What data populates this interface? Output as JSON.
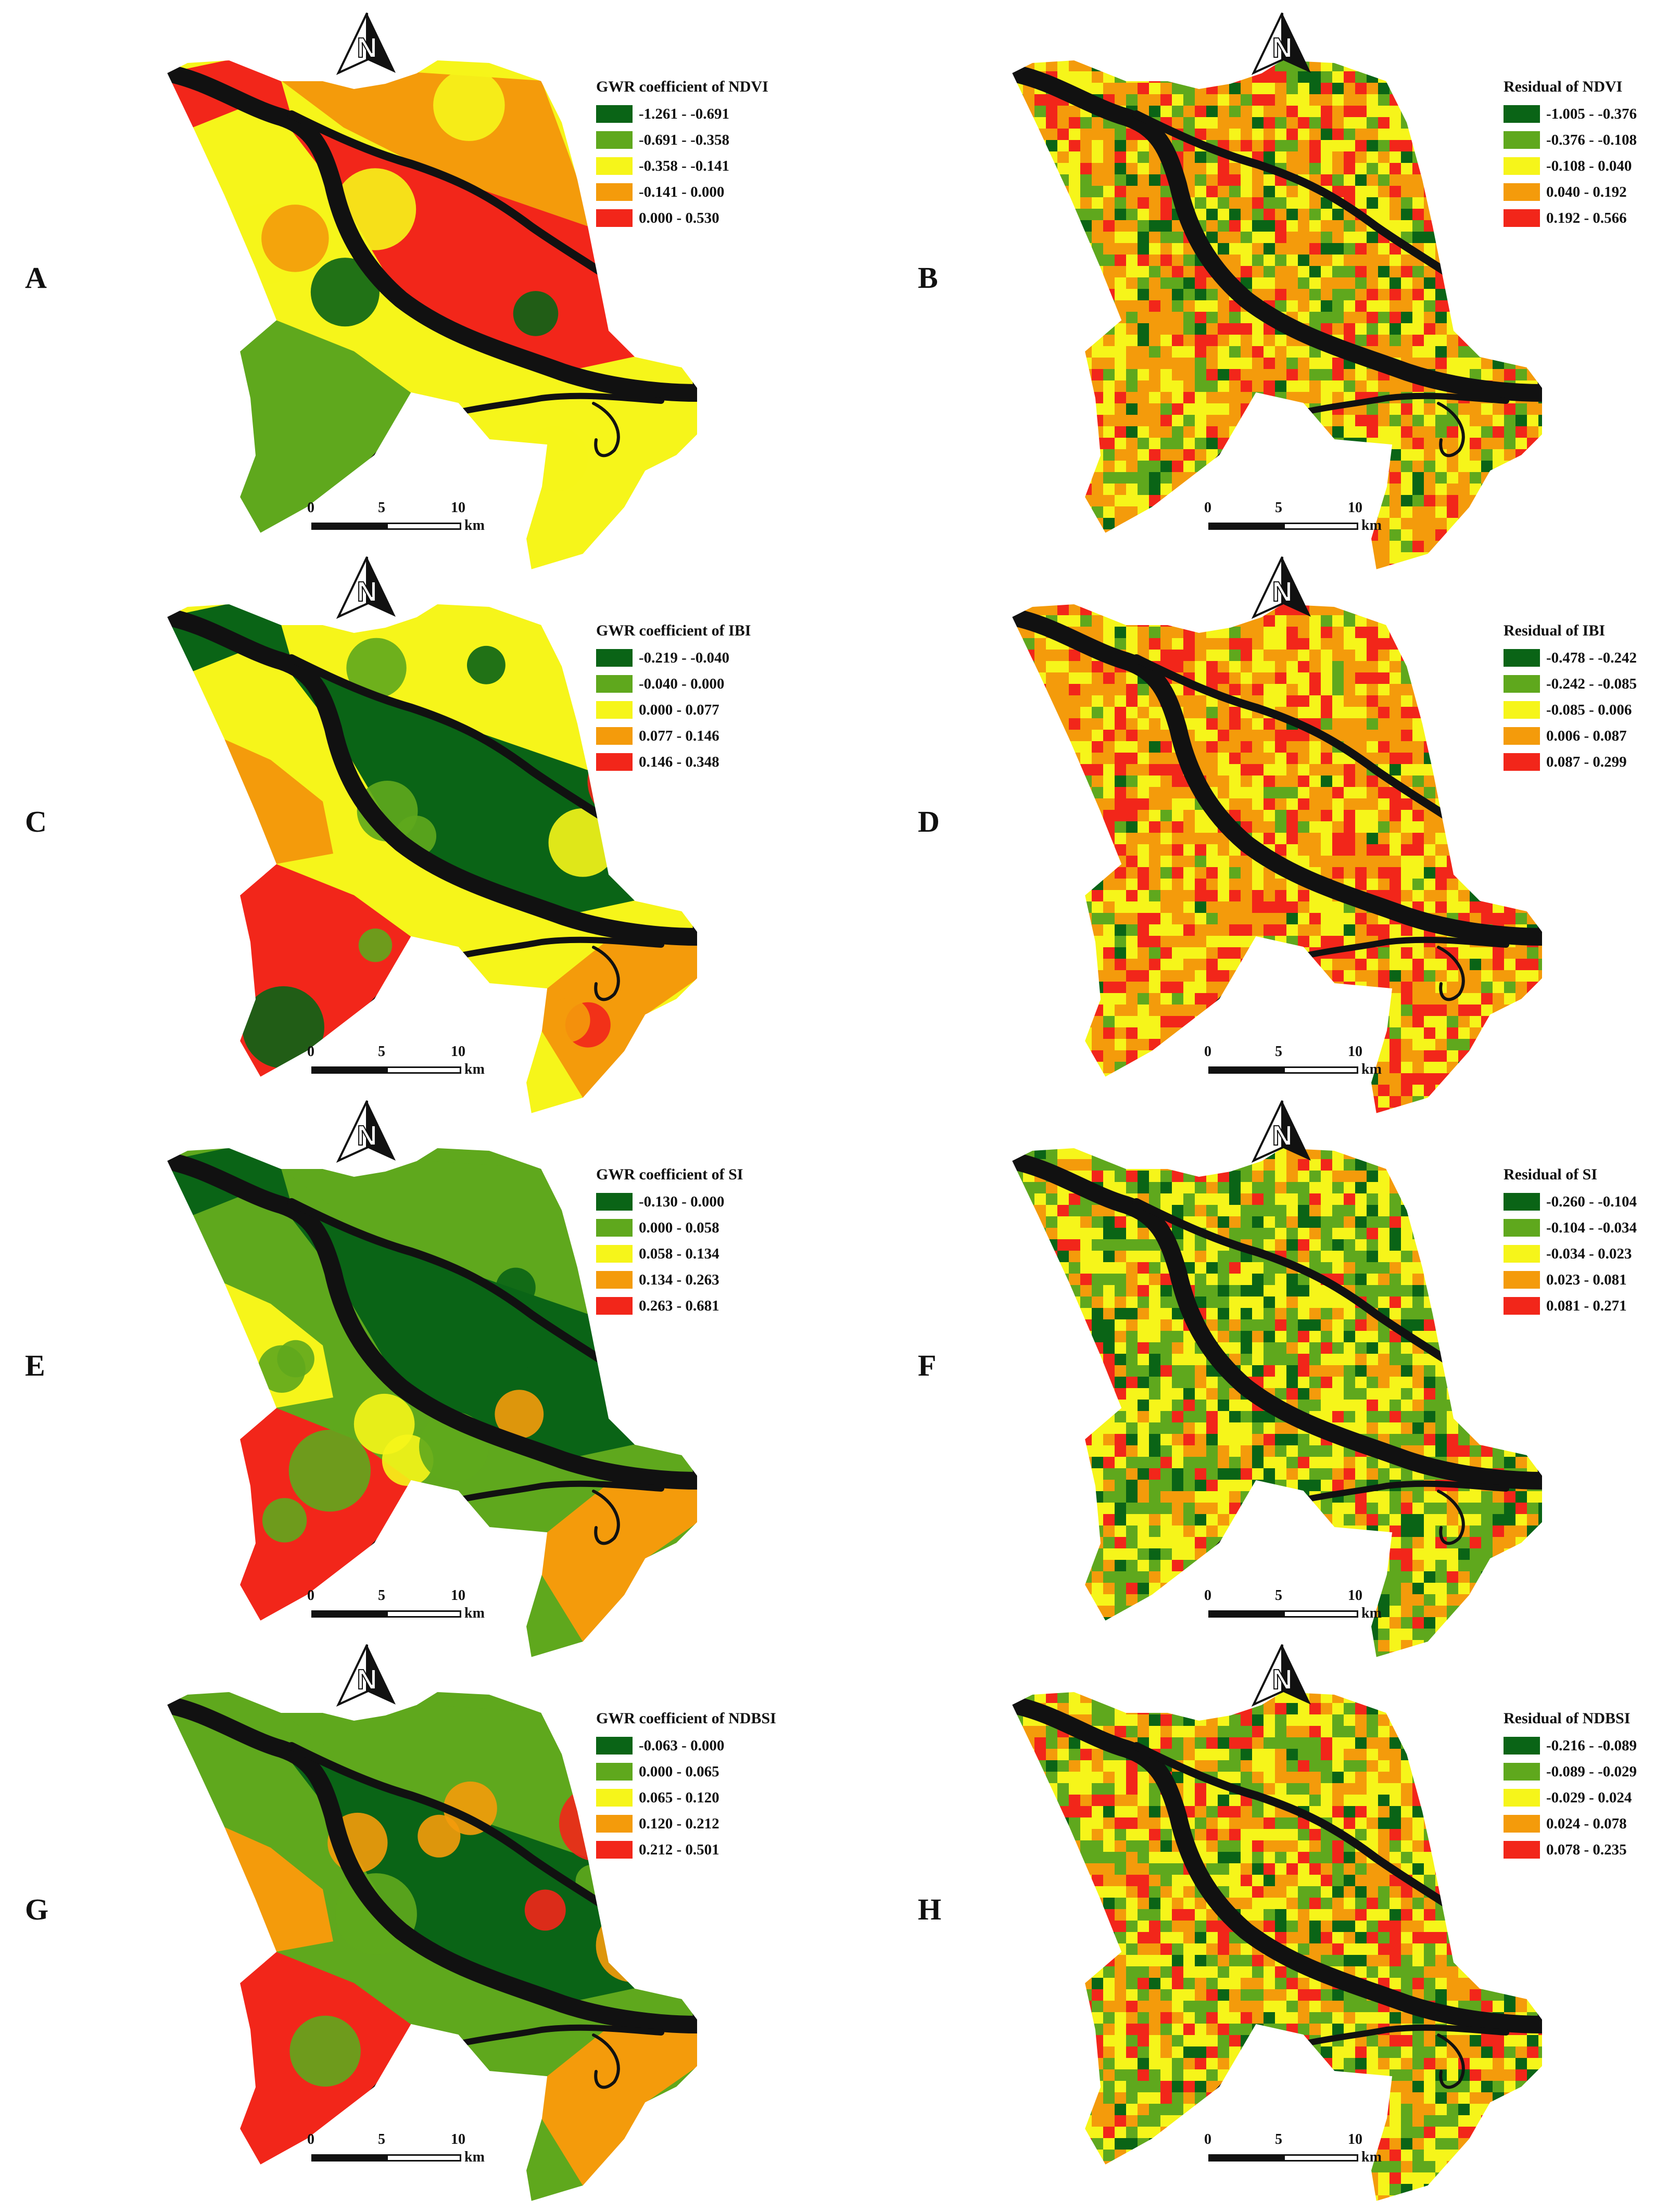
{
  "colors": {
    "dark_green": "#0a6416",
    "light_green": "#5fa81d",
    "yellow": "#f6f51a",
    "orange": "#f49b0b",
    "red": "#f2261a",
    "river": "#111111"
  },
  "scale": {
    "ticks": [
      "0",
      "5",
      "10"
    ],
    "unit": "km"
  },
  "north_label": "N",
  "panels": [
    {
      "letter": "A",
      "type": "coefficient",
      "legend_title": "GWR coefficient of NDVI",
      "classes": [
        "-1.261 - -0.691",
        "-0.691 - -0.358",
        "-0.358 - -0.141",
        "-0.141 - 0.000",
        "0.000 - 0.530"
      ]
    },
    {
      "letter": "B",
      "type": "residual",
      "legend_title": "Residual of NDVI",
      "classes": [
        "-1.005 - -0.376",
        "-0.376 - -0.108",
        "-0.108 - 0.040",
        "0.040 - 0.192",
        "0.192 - 0.566"
      ]
    },
    {
      "letter": "C",
      "type": "coefficient",
      "legend_title": "GWR coefficient of IBI",
      "classes": [
        "-0.219 - -0.040",
        "-0.040 - 0.000",
        "0.000 - 0.077",
        "0.077 - 0.146",
        "0.146 - 0.348"
      ]
    },
    {
      "letter": "D",
      "type": "residual",
      "legend_title": "Residual of IBI",
      "classes": [
        "-0.478 - -0.242",
        "-0.242 - -0.085",
        "-0.085 - 0.006",
        "0.006 - 0.087",
        "0.087 - 0.299"
      ]
    },
    {
      "letter": "E",
      "type": "coefficient",
      "legend_title": "GWR coefficient of SI",
      "classes": [
        "-0.130 - 0.000",
        "0.000 - 0.058",
        "0.058 - 0.134",
        "0.134 - 0.263",
        "0.263 - 0.681"
      ]
    },
    {
      "letter": "F",
      "type": "residual",
      "legend_title": "Residual of SI",
      "classes": [
        "-0.260 - -0.104",
        "-0.104 - -0.034",
        "-0.034 - 0.023",
        "0.023 - 0.081",
        "0.081 - 0.271"
      ]
    },
    {
      "letter": "G",
      "type": "coefficient",
      "legend_title": "GWR coefficient of NDBSI",
      "classes": [
        "-0.063 - 0.000",
        "0.000 - 0.065",
        "0.065 - 0.120",
        "0.120 - 0.212",
        "0.212 - 0.501"
      ]
    },
    {
      "letter": "H",
      "type": "residual",
      "legend_title": "Residual of NDBSI",
      "classes": [
        "-0.216 - -0.089",
        "-0.089 - -0.029",
        "-0.029 - 0.024",
        "0.024 - 0.078",
        "0.078 - 0.235"
      ]
    }
  ]
}
